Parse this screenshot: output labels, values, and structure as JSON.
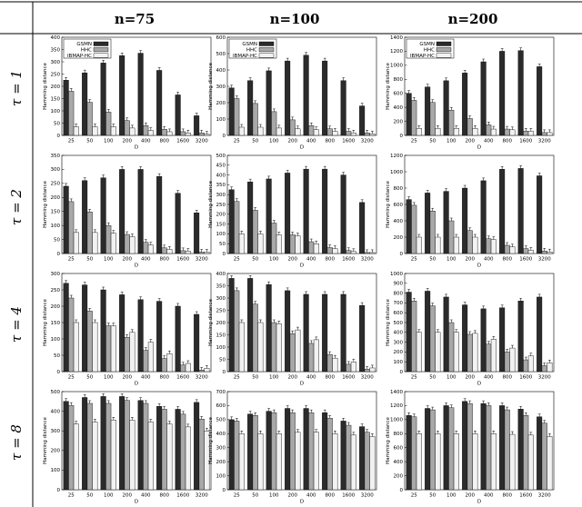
{
  "columns": [
    "n=75",
    "n=100",
    "n=200"
  ],
  "rows": [
    "τ = 1",
    "τ = 2",
    "τ = 4",
    "τ = 8"
  ],
  "legend": [
    "GSMN",
    "HHC",
    "IBMAP-HC"
  ],
  "colors": {
    "GSMN": "#2b2b2b",
    "HHC": "#a8a8a8",
    "IBMAP-HC": "#f2f2f2"
  },
  "chart_data": [
    {
      "type": "bar",
      "row": 0,
      "col": 0,
      "xlabel": "D",
      "ylabel": "Hamming distance",
      "categories": [
        "25",
        "50",
        "100",
        "200",
        "400",
        "800",
        "1600",
        "3200"
      ],
      "ylim": [
        0,
        400
      ],
      "yticks": [
        0,
        50,
        100,
        150,
        200,
        250,
        300,
        350,
        400
      ],
      "legend": true,
      "series": [
        {
          "name": "GSMN",
          "values": [
            225,
            255,
            295,
            325,
            335,
            265,
            165,
            80
          ]
        },
        {
          "name": "HHC",
          "values": [
            180,
            135,
            95,
            60,
            40,
            25,
            15,
            10
          ]
        },
        {
          "name": "IBMAP-HC",
          "values": [
            35,
            35,
            35,
            30,
            20,
            15,
            10,
            5
          ]
        }
      ]
    },
    {
      "type": "bar",
      "row": 0,
      "col": 1,
      "xlabel": "D",
      "ylabel": "Hamming distance",
      "categories": [
        "25",
        "50",
        "100",
        "200",
        "400",
        "800",
        "1600",
        "3200"
      ],
      "ylim": [
        0,
        600
      ],
      "yticks": [
        0,
        100,
        200,
        300,
        400,
        500,
        600
      ],
      "legend": true,
      "series": [
        {
          "name": "GSMN",
          "values": [
            290,
            335,
            395,
            455,
            490,
            455,
            335,
            180
          ]
        },
        {
          "name": "HHC",
          "values": [
            225,
            195,
            145,
            95,
            60,
            40,
            25,
            15
          ]
        },
        {
          "name": "IBMAP-HC",
          "values": [
            50,
            50,
            45,
            40,
            35,
            25,
            15,
            10
          ]
        }
      ]
    },
    {
      "type": "bar",
      "row": 0,
      "col": 2,
      "xlabel": "D",
      "ylabel": "Hamming distance",
      "categories": [
        "25",
        "50",
        "100",
        "200",
        "400",
        "800",
        "1600",
        "3200"
      ],
      "ylim": [
        0,
        1400
      ],
      "yticks": [
        0,
        200,
        400,
        600,
        800,
        1000,
        1200,
        1400
      ],
      "legend": true,
      "series": [
        {
          "name": "GSMN",
          "values": [
            600,
            690,
            780,
            890,
            1050,
            1200,
            1210,
            980
          ]
        },
        {
          "name": "HHC",
          "values": [
            500,
            470,
            360,
            240,
            150,
            90,
            60,
            40
          ]
        },
        {
          "name": "IBMAP-HC",
          "values": [
            100,
            100,
            100,
            100,
            90,
            80,
            60,
            40
          ]
        }
      ]
    },
    {
      "type": "bar",
      "row": 1,
      "col": 0,
      "xlabel": "D",
      "ylabel": "Hamming distance",
      "categories": [
        "25",
        "50",
        "100",
        "200",
        "400",
        "800",
        "1600",
        "3200"
      ],
      "ylim": [
        0,
        350
      ],
      "yticks": [
        0,
        50,
        100,
        150,
        200,
        250,
        300,
        350
      ],
      "legend": false,
      "series": [
        {
          "name": "GSMN",
          "values": [
            240,
            260,
            270,
            300,
            300,
            275,
            215,
            145
          ]
        },
        {
          "name": "HHC",
          "values": [
            185,
            148,
            100,
            68,
            40,
            20,
            10,
            5
          ]
        },
        {
          "name": "IBMAP-HC",
          "values": [
            75,
            75,
            72,
            60,
            30,
            15,
            8,
            5
          ]
        }
      ]
    },
    {
      "type": "bar",
      "row": 1,
      "col": 1,
      "xlabel": "D",
      "ylabel": "Hamming distance",
      "categories": [
        "25",
        "50",
        "100",
        "200",
        "400",
        "800",
        "1600",
        "3200"
      ],
      "ylim": [
        0,
        500
      ],
      "yticks": [
        0,
        50,
        100,
        150,
        200,
        250,
        300,
        350,
        400,
        450,
        500
      ],
      "legend": false,
      "series": [
        {
          "name": "GSMN",
          "values": [
            325,
            365,
            380,
            410,
            430,
            430,
            400,
            260
          ]
        },
        {
          "name": "HHC",
          "values": [
            265,
            220,
            155,
            95,
            60,
            30,
            15,
            5
          ]
        },
        {
          "name": "IBMAP-HC",
          "values": [
            100,
            100,
            95,
            90,
            50,
            25,
            10,
            5
          ]
        }
      ]
    },
    {
      "type": "bar",
      "row": 1,
      "col": 2,
      "xlabel": "D",
      "ylabel": "Hamming distance",
      "categories": [
        "25",
        "50",
        "100",
        "200",
        "400",
        "800",
        "1600",
        "3200"
      ],
      "ylim": [
        0,
        1200
      ],
      "yticks": [
        0,
        200,
        400,
        600,
        800,
        1000,
        1200
      ],
      "legend": false,
      "series": [
        {
          "name": "GSMN",
          "values": [
            660,
            740,
            760,
            800,
            890,
            1030,
            1040,
            950
          ]
        },
        {
          "name": "HHC",
          "values": [
            590,
            520,
            400,
            280,
            180,
            100,
            60,
            30
          ]
        },
        {
          "name": "IBMAP-HC",
          "values": [
            200,
            200,
            200,
            200,
            170,
            80,
            40,
            20
          ]
        }
      ]
    },
    {
      "type": "bar",
      "row": 2,
      "col": 0,
      "xlabel": "D",
      "ylabel": "Hamming distance",
      "categories": [
        "25",
        "50",
        "100",
        "200",
        "400",
        "800",
        "1600",
        "3200"
      ],
      "ylim": [
        0,
        300
      ],
      "yticks": [
        0,
        50,
        100,
        150,
        200,
        250,
        300
      ],
      "legend": false,
      "series": [
        {
          "name": "GSMN",
          "values": [
            270,
            265,
            250,
            235,
            220,
            215,
            200,
            175
          ]
        },
        {
          "name": "HHC",
          "values": [
            225,
            185,
            140,
            105,
            65,
            40,
            20,
            5
          ]
        },
        {
          "name": "IBMAP-HC",
          "values": [
            150,
            150,
            140,
            120,
            90,
            55,
            25,
            10
          ]
        }
      ]
    },
    {
      "type": "bar",
      "row": 2,
      "col": 1,
      "xlabel": "D",
      "ylabel": "Hamming distance",
      "categories": [
        "25",
        "50",
        "100",
        "200",
        "400",
        "800",
        "1600",
        "3200"
      ],
      "ylim": [
        0,
        400
      ],
      "yticks": [
        0,
        50,
        100,
        150,
        200,
        250,
        300,
        350,
        400
      ],
      "legend": false,
      "series": [
        {
          "name": "GSMN",
          "values": [
            380,
            380,
            355,
            330,
            315,
            315,
            315,
            270
          ]
        },
        {
          "name": "HHC",
          "values": [
            330,
            275,
            200,
            155,
            115,
            70,
            30,
            10
          ]
        },
        {
          "name": "IBMAP-HC",
          "values": [
            200,
            200,
            195,
            170,
            130,
            55,
            40,
            15
          ]
        }
      ]
    },
    {
      "type": "bar",
      "row": 2,
      "col": 2,
      "xlabel": "D",
      "ylabel": "Hamming distance",
      "categories": [
        "25",
        "50",
        "100",
        "200",
        "400",
        "800",
        "1600",
        "3200"
      ],
      "ylim": [
        0,
        1000
      ],
      "yticks": [
        0,
        100,
        200,
        300,
        400,
        500,
        600,
        700,
        800,
        900,
        1000
      ],
      "legend": false,
      "series": [
        {
          "name": "GSMN",
          "values": [
            810,
            820,
            760,
            680,
            640,
            650,
            720,
            760
          ]
        },
        {
          "name": "HHC",
          "values": [
            720,
            670,
            500,
            380,
            280,
            200,
            120,
            60
          ]
        },
        {
          "name": "IBMAP-HC",
          "values": [
            400,
            400,
            400,
            390,
            330,
            240,
            160,
            90
          ]
        }
      ]
    },
    {
      "type": "bar",
      "row": 3,
      "col": 0,
      "xlabel": "D",
      "ylabel": "Hamming distance",
      "categories": [
        "25",
        "50",
        "100",
        "200",
        "400",
        "800",
        "1600",
        "3200"
      ],
      "ylim": [
        0,
        500
      ],
      "yticks": [
        0,
        100,
        200,
        300,
        400,
        500
      ],
      "legend": false,
      "series": [
        {
          "name": "GSMN",
          "values": [
            450,
            470,
            475,
            475,
            455,
            425,
            410,
            445
          ]
        },
        {
          "name": "HHC",
          "values": [
            430,
            440,
            440,
            455,
            440,
            410,
            385,
            360
          ]
        },
        {
          "name": "IBMAP-HC",
          "values": [
            335,
            345,
            355,
            355,
            345,
            335,
            320,
            300
          ]
        }
      ]
    },
    {
      "type": "bar",
      "row": 3,
      "col": 1,
      "xlabel": "D",
      "ylabel": "Hamming distance",
      "categories": [
        "25",
        "50",
        "100",
        "200",
        "400",
        "800",
        "1600",
        "3200"
      ],
      "ylim": [
        0,
        700
      ],
      "yticks": [
        0,
        100,
        200,
        300,
        400,
        500,
        600,
        700
      ],
      "legend": false,
      "series": [
        {
          "name": "GSMN",
          "values": [
            500,
            540,
            560,
            580,
            580,
            550,
            490,
            450
          ]
        },
        {
          "name": "HHC",
          "values": [
            490,
            530,
            550,
            550,
            550,
            510,
            460,
            410
          ]
        },
        {
          "name": "IBMAP-HC",
          "values": [
            400,
            400,
            400,
            410,
            410,
            400,
            390,
            380
          ]
        }
      ]
    },
    {
      "type": "bar",
      "row": 3,
      "col": 2,
      "xlabel": "D",
      "ylabel": "Hamming distance",
      "categories": [
        "25",
        "50",
        "100",
        "200",
        "400",
        "800",
        "1600",
        "3200"
      ],
      "ylim": [
        0,
        1400
      ],
      "yticks": [
        0,
        200,
        400,
        600,
        800,
        1000,
        1200,
        1400
      ],
      "legend": false,
      "series": [
        {
          "name": "GSMN",
          "values": [
            1060,
            1160,
            1200,
            1260,
            1230,
            1200,
            1150,
            1040
          ]
        },
        {
          "name": "HHC",
          "values": [
            1040,
            1140,
            1170,
            1230,
            1200,
            1140,
            1060,
            950
          ]
        },
        {
          "name": "IBMAP-HC",
          "values": [
            800,
            800,
            800,
            800,
            800,
            790,
            780,
            760
          ]
        }
      ]
    }
  ]
}
